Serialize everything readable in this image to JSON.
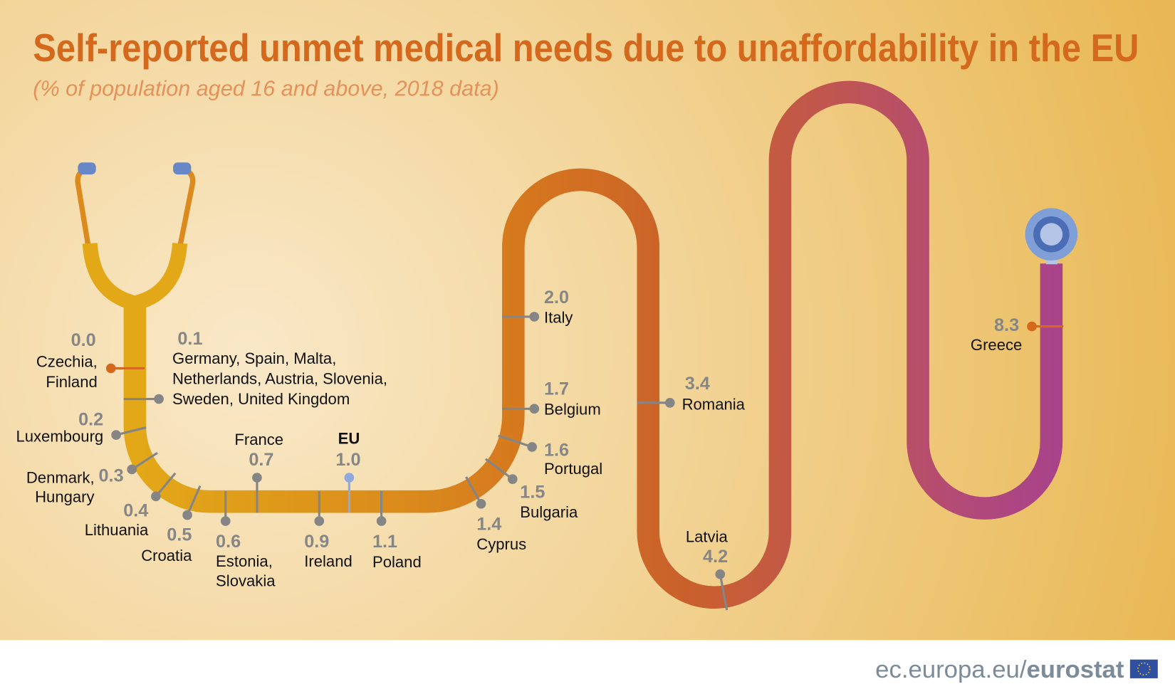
{
  "title": "Self-reported unmet medical needs due to unaffordability in the EU",
  "subtitle": "(% of population aged 16 and above, 2018 data)",
  "footer": {
    "site": "ec.europa.eu/",
    "brand": "eurostat"
  },
  "colors": {
    "highlight": "#d4691e",
    "eu": "#3f66b0",
    "value_grey": "#868686",
    "tube_start": "#e3a818",
    "tube_end": "#a8438a",
    "chestpiece": "#4a6db5"
  },
  "chart_data": {
    "type": "line",
    "title": "Self-reported unmet medical needs due to unaffordability in the EU",
    "subtitle": "(% of population aged 16 and above, 2018 data)",
    "unit": "% of population aged 16 and above",
    "points": [
      {
        "label_lines": [
          "Czechia,",
          "Finland"
        ],
        "value": 0.0,
        "value_text": "0.0",
        "style": "highlight"
      },
      {
        "label_lines": [
          "Germany, Spain, Malta,",
          "Netherlands, Austria, Slovenia,",
          "Sweden, United Kingdom"
        ],
        "value": 0.1,
        "value_text": "0.1"
      },
      {
        "label_lines": [
          "Luxembourg"
        ],
        "value": 0.2,
        "value_text": "0.2"
      },
      {
        "label_lines": [
          "Denmark,",
          "Hungary"
        ],
        "value": 0.3,
        "value_text": "0.3"
      },
      {
        "label_lines": [
          "Lithuania"
        ],
        "value": 0.4,
        "value_text": "0.4"
      },
      {
        "label_lines": [
          "Croatia"
        ],
        "value": 0.5,
        "value_text": "0.5"
      },
      {
        "label_lines": [
          "Estonia,",
          "Slovakia"
        ],
        "value": 0.6,
        "value_text": "0.6"
      },
      {
        "label_lines": [
          "France"
        ],
        "value": 0.7,
        "value_text": "0.7"
      },
      {
        "label_lines": [
          "Ireland"
        ],
        "value": 0.9,
        "value_text": "0.9"
      },
      {
        "label_lines": [
          "EU"
        ],
        "value": 1.0,
        "value_text": "1.0",
        "style": "eu"
      },
      {
        "label_lines": [
          "Poland"
        ],
        "value": 1.1,
        "value_text": "1.1"
      },
      {
        "label_lines": [
          "Cyprus"
        ],
        "value": 1.4,
        "value_text": "1.4"
      },
      {
        "label_lines": [
          "Bulgaria"
        ],
        "value": 1.5,
        "value_text": "1.5"
      },
      {
        "label_lines": [
          "Portugal"
        ],
        "value": 1.6,
        "value_text": "1.6"
      },
      {
        "label_lines": [
          "Belgium"
        ],
        "value": 1.7,
        "value_text": "1.7"
      },
      {
        "label_lines": [
          "Italy"
        ],
        "value": 2.0,
        "value_text": "2.0"
      },
      {
        "label_lines": [
          "Romania"
        ],
        "value": 3.4,
        "value_text": "3.4"
      },
      {
        "label_lines": [
          "Latvia"
        ],
        "value": 4.2,
        "value_text": "4.2"
      },
      {
        "label_lines": [
          "Greece"
        ],
        "value": 8.3,
        "value_text": "8.3",
        "style": "highlight"
      }
    ]
  }
}
